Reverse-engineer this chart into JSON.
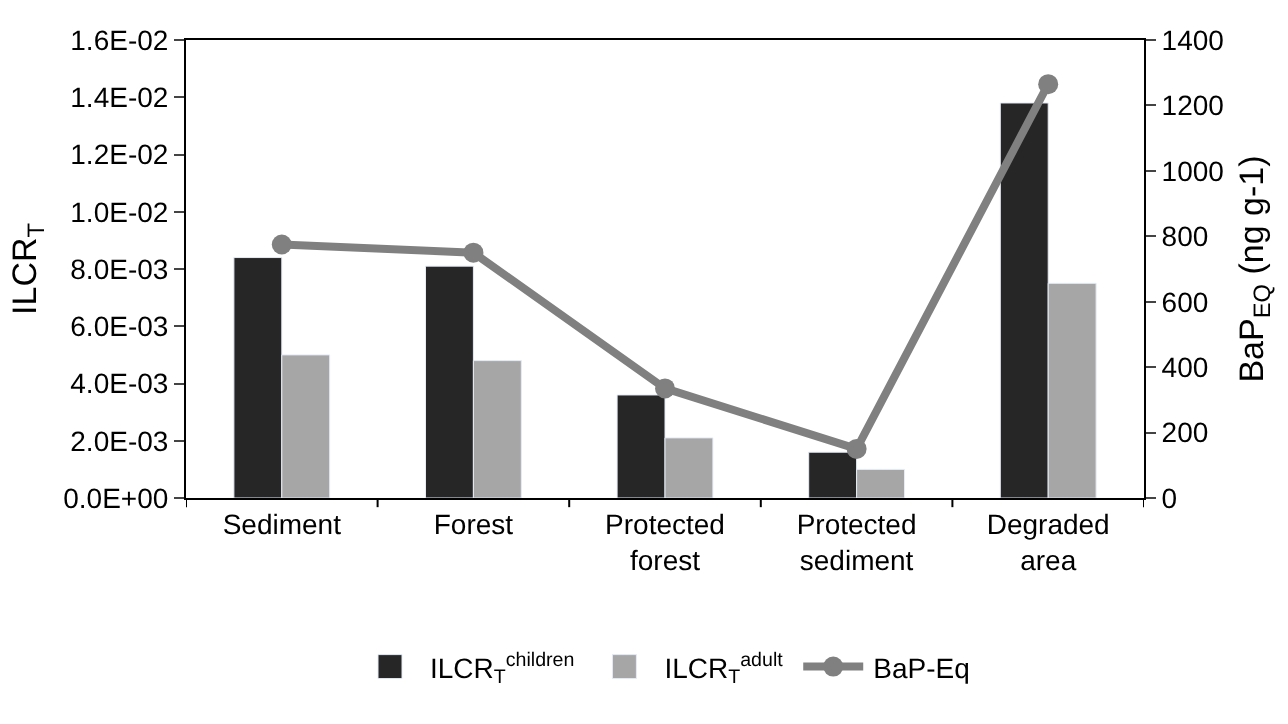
{
  "chart_data": {
    "type": "bar",
    "categories": [
      "Sediment",
      "Forest",
      "Protected forest",
      "Protected sediment",
      "Degraded area"
    ],
    "series": [
      {
        "name": "ILCR$_{T}$$^{children}$",
        "color": "#262626",
        "values": [
          0.0084,
          0.0081,
          0.0036,
          0.0016,
          0.0138
        ]
      },
      {
        "name": "ILCR$_{T}$$^{adult}$",
        "color": "#a6a6a6",
        "values": [
          0.005,
          0.0048,
          0.0021,
          0.001,
          0.0075
        ]
      },
      {
        "name": "BaP-Eq",
        "type": "line",
        "axis": "y2",
        "color": "#808080",
        "values": [
          775,
          750,
          335,
          150,
          1265
        ]
      }
    ],
    "ylabel": "ILCR$_{T}$",
    "y2label": "BaP$_{EQ}$ (ng g-1)",
    "ylim": [
      0,
      0.016
    ],
    "yticks": [
      {
        "value": 0,
        "label": "0.0E+00"
      },
      {
        "value": 0.002,
        "label": "2.0E-03"
      },
      {
        "value": 0.004,
        "label": "4.0E-03"
      },
      {
        "value": 0.006,
        "label": "6.0E-03"
      },
      {
        "value": 0.008,
        "label": "8.0E-03"
      },
      {
        "value": 0.01,
        "label": "1.0E-02"
      },
      {
        "value": 0.012,
        "label": "1.2E-02"
      },
      {
        "value": 0.014,
        "label": "1.4E-02"
      },
      {
        "value": 0.016,
        "label": "1.6E-02"
      }
    ],
    "y2lim": [
      0,
      1400
    ],
    "y2ticks": [
      0,
      200,
      400,
      600,
      800,
      1000,
      1200,
      1400
    ],
    "legend": "bottom",
    "marker": "circle",
    "line_style": "solid"
  }
}
